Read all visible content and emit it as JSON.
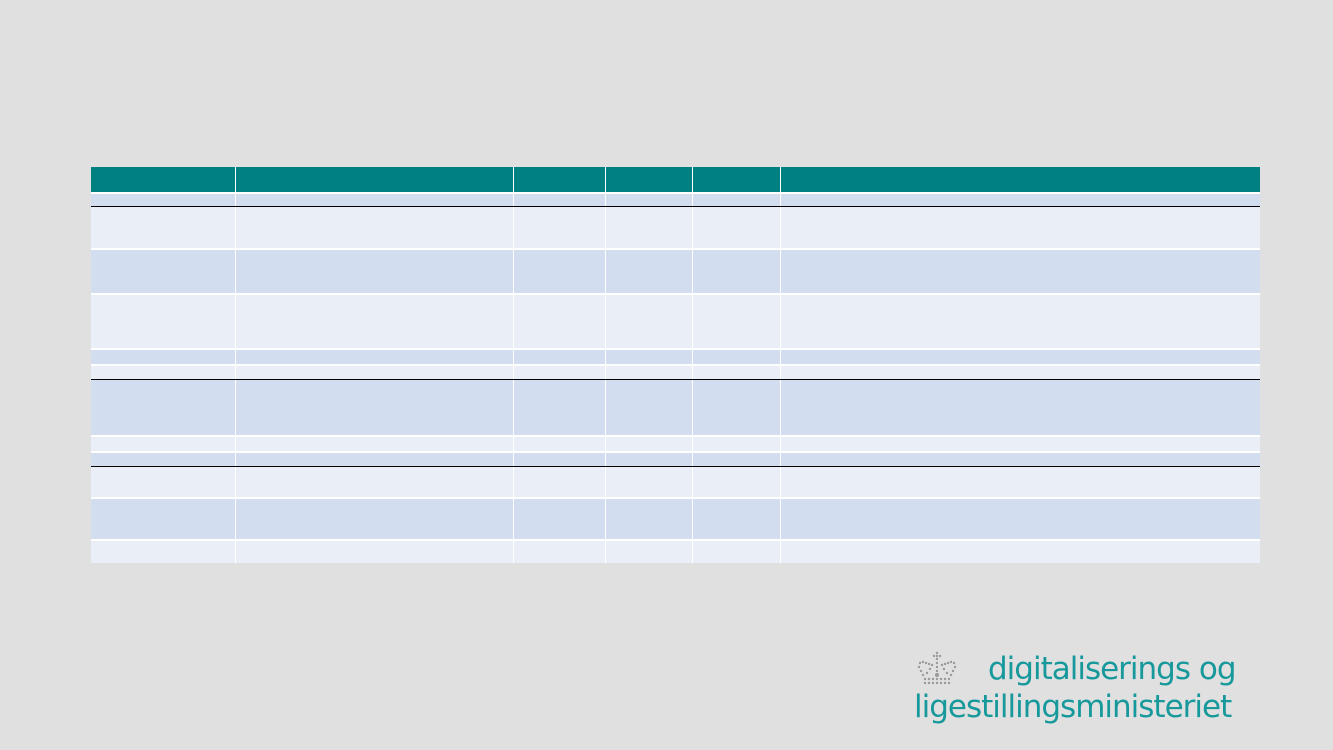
{
  "colors": {
    "header": "#008080",
    "row_dark": "#d2deef",
    "row_light": "#e9eef7",
    "logo_text": "#17999c"
  },
  "table": {
    "headers": [
      "",
      "",
      "",
      "",
      "",
      ""
    ],
    "rows": [
      [
        "",
        "",
        "",
        "",
        "",
        ""
      ],
      [
        "",
        "",
        "",
        "",
        "",
        ""
      ],
      [
        "",
        "",
        "",
        "",
        "",
        ""
      ],
      [
        "",
        "",
        "",
        "",
        "",
        ""
      ],
      [
        "",
        "",
        "",
        "",
        "",
        ""
      ],
      [
        "",
        "",
        "",
        "",
        "",
        ""
      ],
      [
        "",
        "",
        "",
        "",
        "",
        ""
      ],
      [
        "",
        "",
        "",
        "",
        "",
        ""
      ],
      [
        "",
        "",
        "",
        "",
        "",
        ""
      ],
      [
        "",
        "",
        "",
        "",
        "",
        ""
      ],
      [
        "",
        "",
        "",
        "",
        "",
        ""
      ],
      [
        "",
        "",
        "",
        "",
        "",
        ""
      ]
    ]
  },
  "logo": {
    "line1": "digitaliserings og",
    "line2": "ligestillingsministeriet",
    "icon": "crown-icon"
  }
}
